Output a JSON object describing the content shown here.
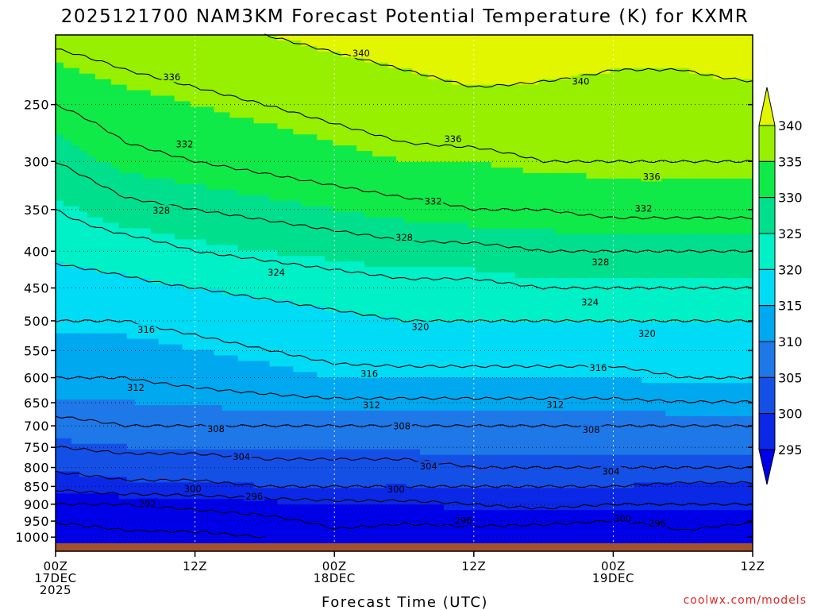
{
  "chart_data": {
    "type": "heatmap",
    "title": "2025121700 NAM3KM Forecast Potential Temperature (K) for KXMR",
    "xlabel": "Forecast Time (UTC)",
    "ylabel": "",
    "x_ticks": [
      {
        "hour": 0,
        "lines": [
          "00Z",
          "17DEC",
          "2025"
        ]
      },
      {
        "hour": 12,
        "lines": [
          "12Z"
        ]
      },
      {
        "hour": 24,
        "lines": [
          "00Z",
          "18DEC"
        ]
      },
      {
        "hour": 36,
        "lines": [
          "12Z"
        ]
      },
      {
        "hour": 48,
        "lines": [
          "00Z",
          "19DEC"
        ]
      },
      {
        "hour": 60,
        "lines": [
          "12Z"
        ]
      }
    ],
    "xlim": [
      0,
      60
    ],
    "y_ticks": [
      250,
      300,
      350,
      400,
      450,
      500,
      550,
      600,
      650,
      700,
      750,
      800,
      850,
      900,
      950,
      1000
    ],
    "ylim": [
      200,
      1020
    ],
    "colorbar": {
      "levels": [
        295,
        300,
        305,
        310,
        315,
        320,
        325,
        330,
        335,
        340
      ],
      "colors": [
        "#0000e8",
        "#0a28e6",
        "#1450e6",
        "#1e78e8",
        "#00a8f0",
        "#00dcf5",
        "#00f0c8",
        "#00e08c",
        "#10ea48",
        "#96f000",
        "#e2f600"
      ]
    },
    "contour_interval": 4,
    "profile_hours": [
      0,
      6,
      12,
      18,
      24,
      30,
      36,
      42,
      48,
      54,
      60
    ],
    "profiles": [
      {
        "p": 1000,
        "theta": [
          285,
          287,
          287,
          288,
          291,
          290,
          290,
          289,
          288,
          291,
          289
        ]
      },
      {
        "p": 900,
        "theta": [
          292,
          292,
          293,
          294,
          295,
          295,
          296,
          297,
          296,
          296,
          296
        ]
      },
      {
        "p": 850,
        "theta": [
          297,
          299,
          299,
          300,
          300,
          300,
          300,
          300,
          300,
          299,
          299
        ]
      },
      {
        "p": 800,
        "theta": [
          301,
          302,
          302,
          303,
          303,
          303,
          304,
          304,
          304,
          304,
          304
        ]
      },
      {
        "p": 700,
        "theta": [
          307,
          308,
          308,
          308,
          308,
          308,
          308,
          308,
          308,
          308,
          308
        ]
      },
      {
        "p": 600,
        "theta": [
          312,
          312,
          313,
          314,
          315,
          315,
          315,
          315,
          315,
          316,
          316
        ]
      },
      {
        "p": 500,
        "theta": [
          316,
          316,
          317,
          318,
          319,
          320,
          320,
          320,
          320,
          320,
          320
        ]
      },
      {
        "p": 450,
        "theta": [
          318,
          319,
          320,
          321,
          322,
          323,
          323,
          324,
          324,
          324,
          324
        ]
      },
      {
        "p": 400,
        "theta": [
          321,
          322,
          324,
          325,
          326,
          327,
          327,
          328,
          328,
          328,
          328
        ]
      },
      {
        "p": 350,
        "theta": [
          324,
          327,
          328,
          329,
          330,
          331,
          332,
          332,
          333,
          333,
          333
        ]
      },
      {
        "p": 300,
        "theta": [
          328,
          331,
          332,
          333,
          334,
          335,
          335,
          336,
          336,
          336,
          336
        ]
      },
      {
        "p": 250,
        "theta": [
          332,
          334,
          335,
          336,
          337,
          338,
          339,
          339,
          339,
          339,
          339
        ]
      },
      {
        "p": 200,
        "theta": [
          337,
          338,
          339,
          340,
          341,
          342,
          343,
          342,
          341,
          341,
          342
        ]
      }
    ],
    "contour_labels": [
      {
        "value": "340",
        "hour": 26.3,
        "p": 212
      },
      {
        "value": "340",
        "hour": 45.2,
        "p": 232
      },
      {
        "value": "336",
        "hour": 10.0,
        "p": 229
      },
      {
        "value": "336",
        "hour": 34.2,
        "p": 279
      },
      {
        "value": "336",
        "hour": 51.3,
        "p": 315
      },
      {
        "value": "332",
        "hour": 11.1,
        "p": 284
      },
      {
        "value": "332",
        "hour": 32.5,
        "p": 341
      },
      {
        "value": "332",
        "hour": 50.6,
        "p": 349
      },
      {
        "value": "328",
        "hour": 9.1,
        "p": 351
      },
      {
        "value": "328",
        "hour": 30.0,
        "p": 383
      },
      {
        "value": "328",
        "hour": 46.9,
        "p": 414
      },
      {
        "value": "324",
        "hour": 19.0,
        "p": 428
      },
      {
        "value": "324",
        "hour": 46.0,
        "p": 471
      },
      {
        "value": "320",
        "hour": 31.4,
        "p": 510
      },
      {
        "value": "320",
        "hour": 50.9,
        "p": 521
      },
      {
        "value": "316",
        "hour": 7.8,
        "p": 514
      },
      {
        "value": "316",
        "hour": 27.0,
        "p": 592
      },
      {
        "value": "316",
        "hour": 46.7,
        "p": 581
      },
      {
        "value": "312",
        "hour": 6.9,
        "p": 619
      },
      {
        "value": "312",
        "hour": 27.2,
        "p": 655
      },
      {
        "value": "312",
        "hour": 43.0,
        "p": 654
      },
      {
        "value": "308",
        "hour": 13.8,
        "p": 707
      },
      {
        "value": "308",
        "hour": 29.8,
        "p": 701
      },
      {
        "value": "308",
        "hour": 46.1,
        "p": 709
      },
      {
        "value": "304",
        "hour": 16.0,
        "p": 773
      },
      {
        "value": "304",
        "hour": 32.1,
        "p": 797
      },
      {
        "value": "304",
        "hour": 47.8,
        "p": 810
      },
      {
        "value": "300",
        "hour": 11.8,
        "p": 857
      },
      {
        "value": "300",
        "hour": 29.3,
        "p": 858
      },
      {
        "value": "300",
        "hour": 48.8,
        "p": 942
      },
      {
        "value": "296",
        "hour": 17.1,
        "p": 878
      },
      {
        "value": "296",
        "hour": 35.1,
        "p": 949
      },
      {
        "value": "296",
        "hour": 51.8,
        "p": 957
      },
      {
        "value": "292",
        "hour": 7.9,
        "p": 899
      }
    ]
  },
  "credit": "coolwx.com/models"
}
